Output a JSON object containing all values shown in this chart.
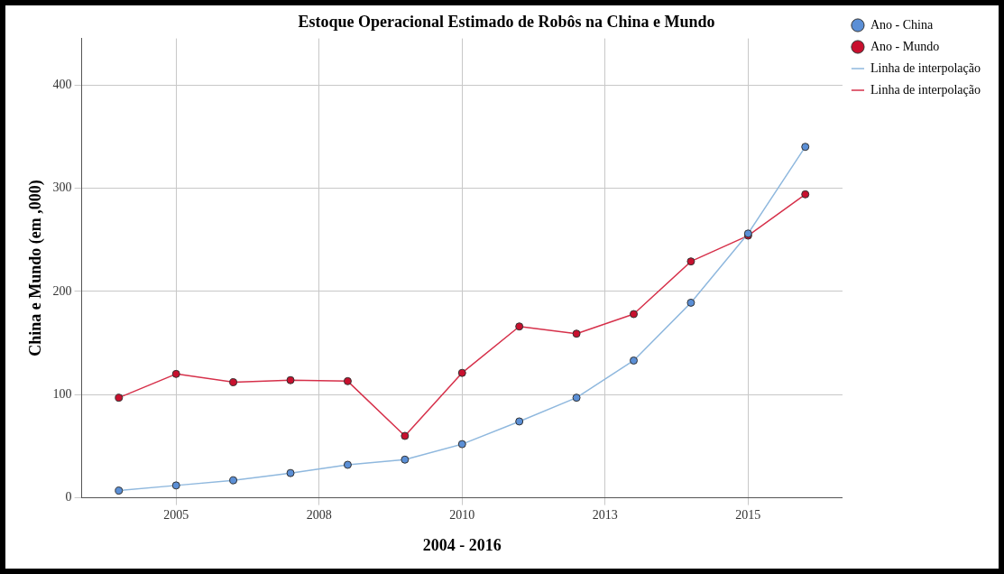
{
  "chart_data": {
    "type": "scatter",
    "title": "Estoque Operacional Estimado de Robôs na China e Mundo",
    "xlabel": "2004 - 2016",
    "ylabel": "China e Mundo (em ,000)",
    "x": [
      2004,
      2005,
      2006,
      2007,
      2008,
      2009,
      2010,
      2011,
      2012,
      2013,
      2014,
      2015,
      2016
    ],
    "series": [
      {
        "name": "Ano - China",
        "color": "#5b8fd6",
        "values": [
          7,
          12,
          17,
          24,
          32,
          37,
          52,
          74,
          97,
          133,
          189,
          256,
          340
        ]
      },
      {
        "name": "Ano - Mundo",
        "color": "#c8102e",
        "values": [
          97,
          120,
          112,
          114,
          113,
          60,
          121,
          166,
          159,
          178,
          229,
          254,
          294
        ]
      },
      {
        "name": "Linha de interpolação",
        "type": "line",
        "marker": "none",
        "color": "#8fb8de",
        "values": [
          7,
          12,
          17,
          24,
          32,
          37,
          52,
          74,
          97,
          133,
          189,
          256,
          340
        ]
      },
      {
        "name": "Linha de interpolação",
        "type": "line",
        "marker": "none",
        "color": "#d6304a",
        "values": [
          97,
          120,
          112,
          114,
          113,
          60,
          121,
          166,
          159,
          178,
          229,
          254,
          294
        ]
      }
    ],
    "xlim": [
      2003.35,
      2016.65
    ],
    "xticks": [
      2005,
      {
        "value": 2007.5,
        "label": "2008"
      },
      2010,
      {
        "value": 2012.5,
        "label": "2013"
      },
      2015
    ],
    "ylim": [
      0,
      445
    ],
    "yticks": [
      0,
      100,
      200,
      300,
      400
    ],
    "grid": true,
    "legend": "top right",
    "marker": "circle",
    "line_style": "solid"
  }
}
